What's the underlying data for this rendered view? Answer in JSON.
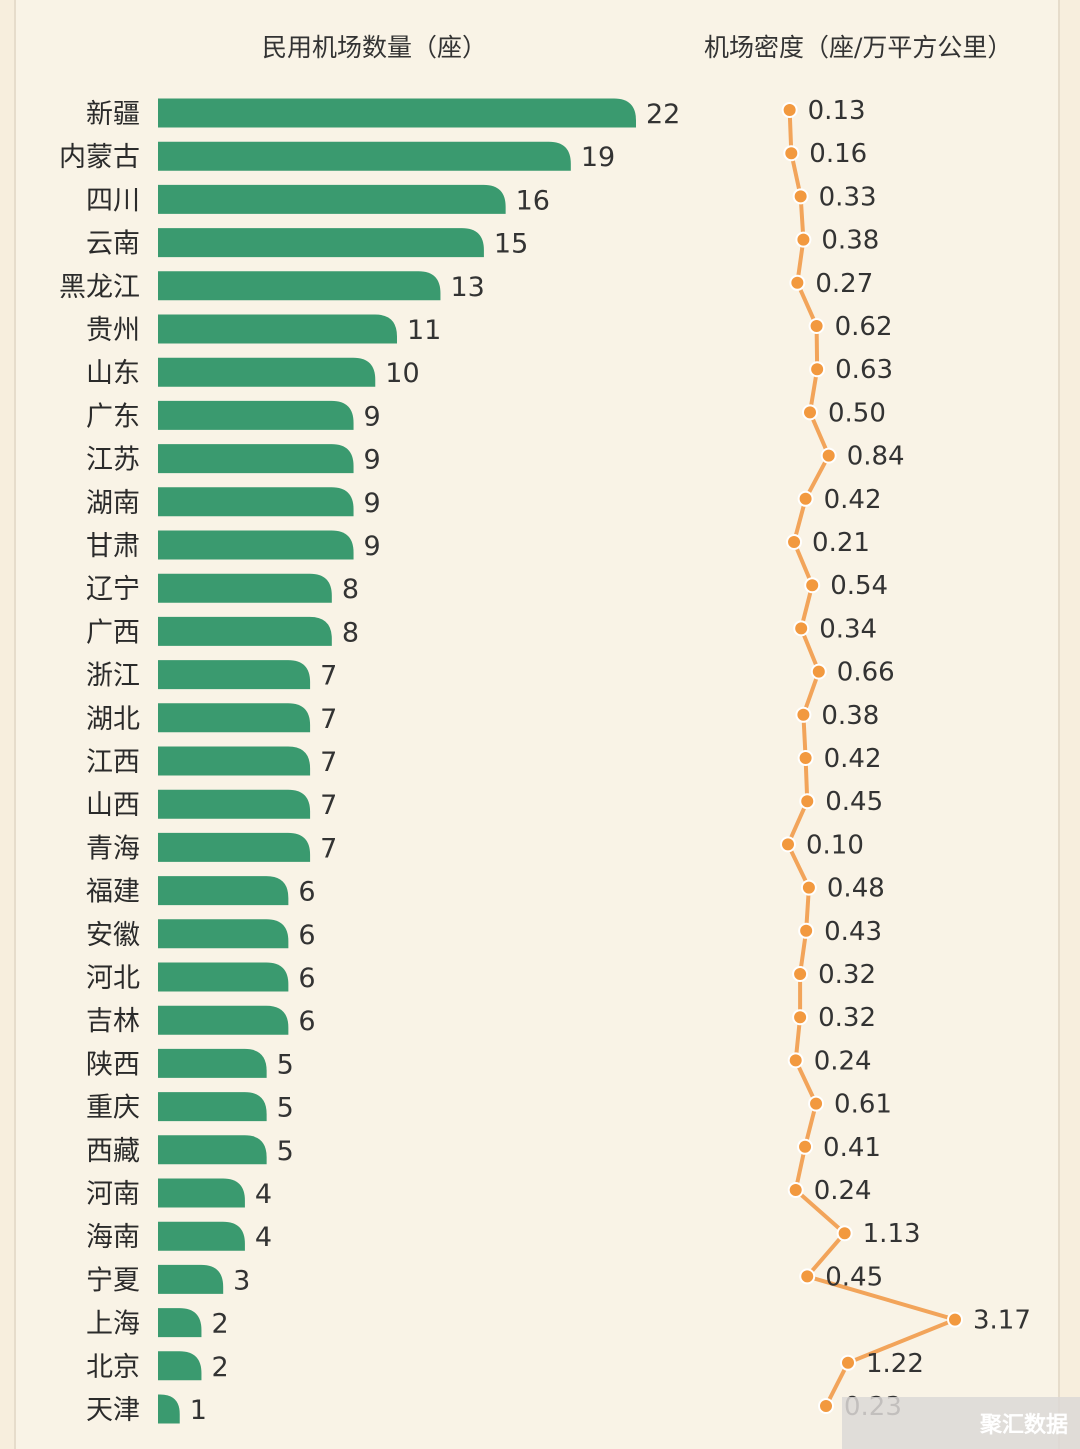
{
  "header": {
    "left_title": "民用机场数量（座）",
    "right_title": "机场密度（座/万平方公里）"
  },
  "watermark": "聚汇数据",
  "colors": {
    "bar": "#3a9a6f",
    "line": "#f2a45a",
    "point": "#f2993f"
  },
  "chart_data": [
    {
      "type": "bar",
      "orientation": "horizontal",
      "title": "民用机场数量（座）",
      "categories": [
        "新疆",
        "内蒙古",
        "四川",
        "云南",
        "黑龙江",
        "贵州",
        "山东",
        "广东",
        "江苏",
        "湖南",
        "甘肃",
        "辽宁",
        "广西",
        "浙江",
        "湖北",
        "江西",
        "山西",
        "青海",
        "福建",
        "安徽",
        "河北",
        "吉林",
        "陕西",
        "重庆",
        "西藏",
        "河南",
        "海南",
        "宁夏",
        "上海",
        "北京",
        "天津"
      ],
      "values": [
        22,
        19,
        16,
        15,
        13,
        11,
        10,
        9,
        9,
        9,
        9,
        8,
        8,
        7,
        7,
        7,
        7,
        7,
        6,
        6,
        6,
        6,
        5,
        5,
        5,
        4,
        4,
        3,
        2,
        2,
        1
      ],
      "xlim": [
        0,
        22
      ],
      "grid": false
    },
    {
      "type": "line",
      "title": "机场密度（座/万平方公里）",
      "categories": [
        "新疆",
        "内蒙古",
        "四川",
        "云南",
        "黑龙江",
        "贵州",
        "山东",
        "广东",
        "江苏",
        "湖南",
        "甘肃",
        "辽宁",
        "广西",
        "浙江",
        "湖北",
        "江西",
        "山西",
        "青海",
        "福建",
        "安徽",
        "河北",
        "吉林",
        "陕西",
        "重庆",
        "西藏",
        "河南",
        "海南",
        "宁夏",
        "上海",
        "北京",
        "天津"
      ],
      "values": [
        0.13,
        0.16,
        0.33,
        0.38,
        0.27,
        0.62,
        0.63,
        0.5,
        0.84,
        0.42,
        0.21,
        0.54,
        0.34,
        0.66,
        0.38,
        0.42,
        0.45,
        0.1,
        0.48,
        0.43,
        0.32,
        0.32,
        0.24,
        0.61,
        0.41,
        0.24,
        1.13,
        0.45,
        3.17,
        1.22,
        0.23
      ],
      "labels": [
        "0.13",
        "0.16",
        "0.33",
        "0.38",
        "0.27",
        "0.62",
        "0.63",
        "0.50",
        "0.84",
        "0.42",
        "0.21",
        "0.54",
        "0.34",
        "0.66",
        "0.38",
        "0.42",
        "0.45",
        "0.10",
        "0.48",
        "0.43",
        "0.32",
        "0.32",
        "0.24",
        "0.61",
        "0.41",
        "0.24",
        "1.13",
        "0.45",
        "3.17",
        "1.22",
        "0.23"
      ],
      "grid": false
    }
  ]
}
